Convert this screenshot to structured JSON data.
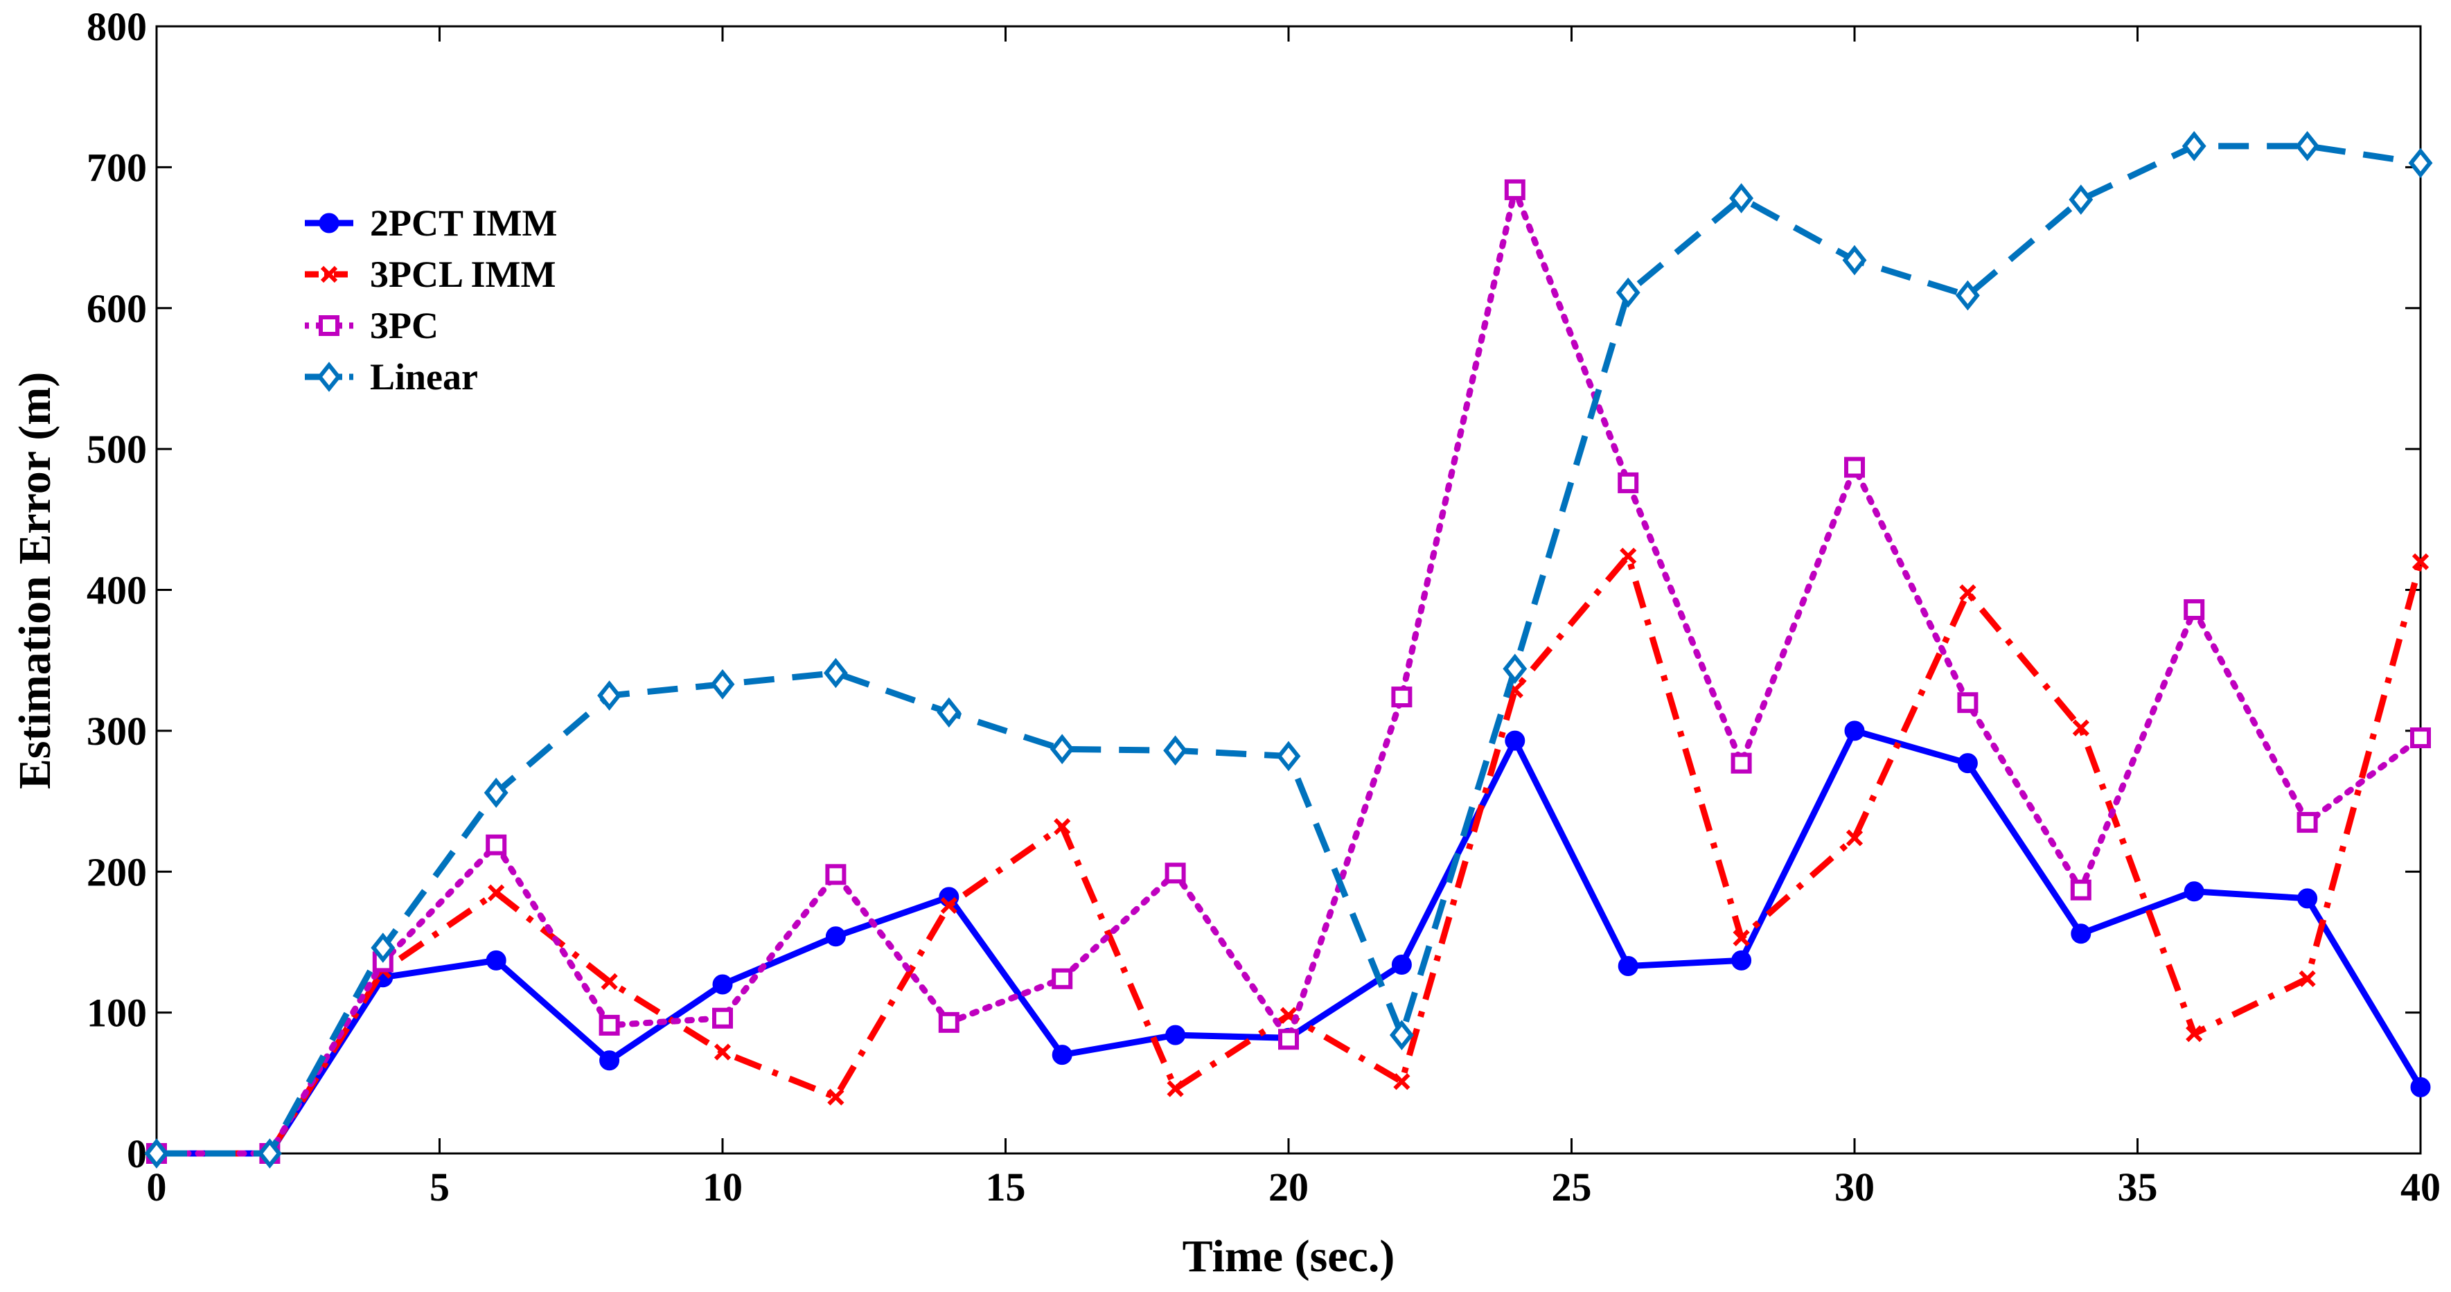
{
  "chart_data": {
    "type": "line",
    "title": "",
    "xlabel": "Time (sec.)",
    "ylabel": "Estimation Error (m)",
    "xlim": [
      0,
      40
    ],
    "ylim": [
      0,
      800
    ],
    "xticks": [
      0,
      5,
      10,
      15,
      20,
      25,
      30,
      35,
      40
    ],
    "yticks": [
      0,
      100,
      200,
      300,
      400,
      500,
      600,
      700,
      800
    ],
    "grid": false,
    "legend_position": "top-left",
    "x": [
      0,
      2,
      4,
      6,
      8,
      10,
      12,
      14,
      16,
      18,
      20,
      22,
      24,
      26,
      28,
      30,
      32,
      34,
      36,
      38,
      40
    ],
    "series": [
      {
        "name": "2PCT IMM",
        "color": "#0000ff",
        "line": "solid",
        "marker": "circle",
        "values": [
          0,
          0,
          125,
          137,
          66,
          120,
          154,
          182,
          70,
          84,
          82,
          134,
          293,
          133,
          137,
          300,
          277,
          156,
          186,
          181,
          47
        ]
      },
      {
        "name": "3PCL IMM",
        "color": "#ff0000",
        "line": "dashdot",
        "marker": "x",
        "values": [
          0,
          0,
          130,
          185,
          122,
          72,
          40,
          176,
          232,
          46,
          98,
          51,
          329,
          424,
          153,
          224,
          398,
          302,
          85,
          124,
          420
        ]
      },
      {
        "name": "3PC",
        "color": "#bf00bf",
        "line": "dotted",
        "marker": "square",
        "values": [
          0,
          0,
          136,
          219,
          91,
          96,
          198,
          93,
          124,
          199,
          81,
          324,
          684,
          476,
          277,
          487,
          320,
          187,
          386,
          235,
          295
        ]
      },
      {
        "name": "Linear",
        "color": "#0072bd",
        "line": "dashed",
        "marker": "diamond",
        "values": [
          0,
          0,
          146,
          256,
          325,
          333,
          341,
          313,
          287,
          286,
          282,
          84,
          344,
          611,
          678,
          634,
          609,
          677,
          715,
          715,
          703
        ]
      }
    ]
  }
}
